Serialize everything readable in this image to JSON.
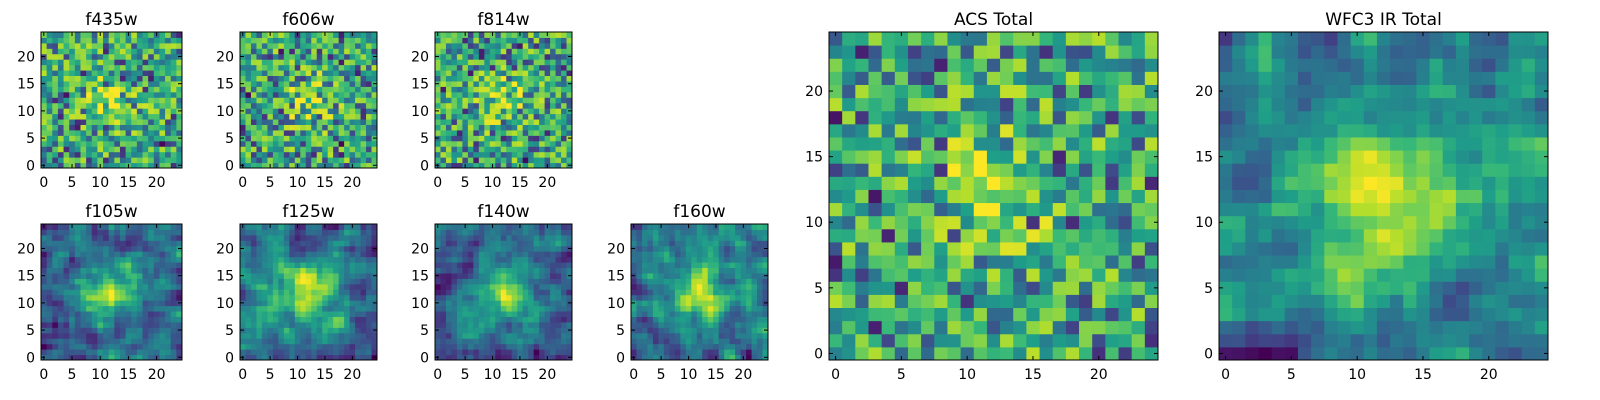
{
  "figure": {
    "background": "#ffffff"
  },
  "chart_data": [
    {
      "type": "heatmap",
      "title": "f435w",
      "xlabel": "",
      "ylabel": "",
      "xlim": [
        0,
        25
      ],
      "ylim": [
        0,
        25
      ],
      "xticks": [
        "0",
        "5",
        "10",
        "15",
        "20"
      ],
      "yticks": [
        "0",
        "5",
        "10",
        "15",
        "20"
      ],
      "grid": false,
      "colormap": "viridis",
      "rows": 25,
      "cols": 25,
      "pattern": "noise",
      "seed": 11
    },
    {
      "type": "heatmap",
      "title": "f606w",
      "xlabel": "",
      "ylabel": "",
      "xlim": [
        0,
        25
      ],
      "ylim": [
        0,
        25
      ],
      "xticks": [
        "0",
        "5",
        "10",
        "15",
        "20"
      ],
      "yticks": [
        "0",
        "5",
        "10",
        "15",
        "20"
      ],
      "grid": false,
      "colormap": "viridis",
      "rows": 25,
      "cols": 25,
      "pattern": "noise",
      "seed": 23
    },
    {
      "type": "heatmap",
      "title": "f814w",
      "xlabel": "",
      "ylabel": "",
      "xlim": [
        0,
        25
      ],
      "ylim": [
        0,
        25
      ],
      "xticks": [
        "0",
        "5",
        "10",
        "15",
        "20"
      ],
      "yticks": [
        "0",
        "5",
        "10",
        "15",
        "20"
      ],
      "grid": false,
      "colormap": "viridis",
      "rows": 25,
      "cols": 25,
      "pattern": "noise",
      "seed": 37
    },
    {
      "type": "heatmap",
      "title": "f105w",
      "xlabel": "",
      "ylabel": "",
      "xlim": [
        0,
        25
      ],
      "ylim": [
        0,
        25
      ],
      "xticks": [
        "0",
        "5",
        "10",
        "15",
        "20"
      ],
      "yticks": [
        "0",
        "5",
        "10",
        "15",
        "20"
      ],
      "grid": false,
      "colormap": "viridis",
      "rows": 25,
      "cols": 25,
      "pattern": "smooth",
      "seed": 41
    },
    {
      "type": "heatmap",
      "title": "f125w",
      "xlabel": "",
      "ylabel": "",
      "xlim": [
        0,
        25
      ],
      "ylim": [
        0,
        25
      ],
      "xticks": [
        "0",
        "5",
        "10",
        "15",
        "20"
      ],
      "yticks": [
        "0",
        "5",
        "10",
        "15",
        "20"
      ],
      "grid": false,
      "colormap": "viridis",
      "rows": 25,
      "cols": 25,
      "pattern": "smooth",
      "seed": 53
    },
    {
      "type": "heatmap",
      "title": "f140w",
      "xlabel": "",
      "ylabel": "",
      "xlim": [
        0,
        25
      ],
      "ylim": [
        0,
        25
      ],
      "xticks": [
        "0",
        "5",
        "10",
        "15",
        "20"
      ],
      "yticks": [
        "0",
        "5",
        "10",
        "15",
        "20"
      ],
      "grid": false,
      "colormap": "viridis",
      "rows": 25,
      "cols": 25,
      "pattern": "smooth",
      "seed": 67
    },
    {
      "type": "heatmap",
      "title": "f160w",
      "xlabel": "",
      "ylabel": "",
      "xlim": [
        0,
        25
      ],
      "ylim": [
        0,
        25
      ],
      "xticks": [
        "0",
        "5",
        "10",
        "15",
        "20"
      ],
      "yticks": [
        "0",
        "5",
        "10",
        "15",
        "20"
      ],
      "grid": false,
      "colormap": "viridis",
      "rows": 25,
      "cols": 25,
      "pattern": "smooth",
      "seed": 79
    },
    {
      "type": "heatmap",
      "title": "ACS Total",
      "xlabel": "",
      "ylabel": "",
      "xlim": [
        0,
        25
      ],
      "ylim": [
        0,
        25
      ],
      "xticks": [
        "0",
        "5",
        "10",
        "15",
        "20"
      ],
      "yticks": [
        "0",
        "5",
        "10",
        "15",
        "20"
      ],
      "grid": false,
      "colormap": "viridis",
      "rows": 25,
      "cols": 25,
      "pattern": "noise",
      "seed": 89
    },
    {
      "type": "heatmap",
      "title": "WFC3 IR Total",
      "xlabel": "",
      "ylabel": "",
      "xlim": [
        0,
        25
      ],
      "ylim": [
        0,
        25
      ],
      "xticks": [
        "0",
        "5",
        "10",
        "15",
        "20"
      ],
      "yticks": [
        "0",
        "5",
        "10",
        "15",
        "20"
      ],
      "grid": false,
      "colormap": "viridis",
      "rows": 25,
      "cols": 25,
      "pattern": "smooth",
      "seed": 97
    }
  ]
}
